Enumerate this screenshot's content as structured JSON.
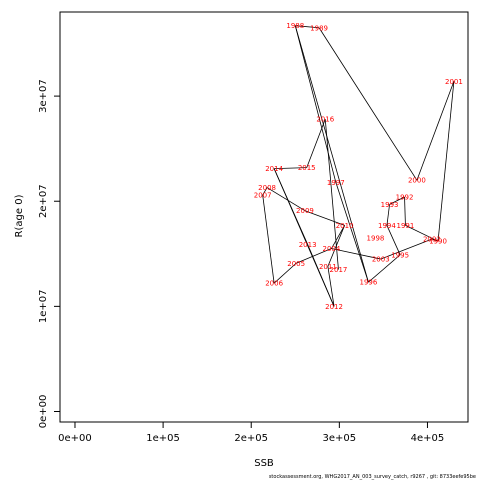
{
  "chart_data": {
    "type": "line",
    "xlabel": "SSB",
    "ylabel": "R(age 0)",
    "xlim": [
      -17000,
      446000
    ],
    "ylim": [
      -1000000,
      38000000
    ],
    "x_ticks": [
      0,
      100000,
      200000,
      300000,
      400000
    ],
    "x_tick_labels": [
      "0e+00",
      "1e+05",
      "2e+05",
      "3e+05",
      "4e+05"
    ],
    "y_ticks": [
      0,
      10000000,
      20000000,
      30000000
    ],
    "y_tick_labels": [
      "0e+00",
      "1e+07",
      "2e+07",
      "3e+07"
    ],
    "line_color": "#000000",
    "label_color": "#ff0000",
    "points": [
      {
        "year": "1988",
        "x": 250000,
        "y": 36700000
      },
      {
        "year": "1989",
        "x": 277000,
        "y": 36500000
      },
      {
        "year": "1990",
        "x": 412000,
        "y": 16200000
      },
      {
        "year": "1991",
        "x": 375000,
        "y": 17700000
      },
      {
        "year": "1992",
        "x": 374000,
        "y": 20400000
      },
      {
        "year": "1993",
        "x": 357000,
        "y": 19700000
      },
      {
        "year": "1994",
        "x": 354000,
        "y": 17700000
      },
      {
        "year": "1995",
        "x": 369000,
        "y": 14900000
      },
      {
        "year": "1996",
        "x": 333000,
        "y": 12300000
      },
      {
        "year": "1997",
        "x": 296000,
        "y": 21800000
      },
      {
        "year": "1998",
        "x": 341000,
        "y": 16500000
      },
      {
        "year": "2000",
        "x": 388000,
        "y": 22000000
      },
      {
        "year": "2001",
        "x": 430000,
        "y": 31400000
      },
      {
        "year": "2002",
        "x": 405000,
        "y": 16400000
      },
      {
        "year": "2003",
        "x": 347000,
        "y": 14500000
      },
      {
        "year": "2004",
        "x": 291000,
        "y": 15500000
      },
      {
        "year": "2005",
        "x": 251000,
        "y": 14100000
      },
      {
        "year": "2006",
        "x": 226000,
        "y": 12200000
      },
      {
        "year": "2007",
        "x": 213000,
        "y": 20600000
      },
      {
        "year": "2008",
        "x": 218000,
        "y": 21300000
      },
      {
        "year": "2009",
        "x": 261000,
        "y": 19100000
      },
      {
        "year": "2010",
        "x": 306000,
        "y": 17700000
      },
      {
        "year": "2011",
        "x": 287000,
        "y": 13800000
      },
      {
        "year": "2012",
        "x": 294000,
        "y": 10000000
      },
      {
        "year": "2013",
        "x": 264000,
        "y": 15900000
      },
      {
        "year": "2014",
        "x": 226000,
        "y": 23100000
      },
      {
        "year": "2015",
        "x": 263000,
        "y": 23200000
      },
      {
        "year": "2016",
        "x": 284000,
        "y": 27800000
      },
      {
        "year": "2017",
        "x": 299000,
        "y": 13500000
      }
    ],
    "connections": [
      [
        "1988",
        "1989"
      ],
      [
        "1989",
        "2000"
      ],
      [
        "2000",
        "2001"
      ],
      [
        "2001",
        "1990"
      ],
      [
        "1990",
        "1991"
      ],
      [
        "1991",
        "1992"
      ],
      [
        "1992",
        "1993"
      ],
      [
        "1993",
        "1994"
      ],
      [
        "1994",
        "1995"
      ],
      [
        "1995",
        "1996"
      ],
      [
        "1996",
        "1997"
      ],
      [
        "1997",
        "1988"
      ],
      [
        "1996",
        "1988"
      ],
      [
        "1990",
        "2002"
      ],
      [
        "2002",
        "2003"
      ],
      [
        "2003",
        "2004"
      ],
      [
        "2004",
        "2005"
      ],
      [
        "2005",
        "2006"
      ],
      [
        "2006",
        "2007"
      ],
      [
        "2007",
        "2008"
      ],
      [
        "2008",
        "2009"
      ],
      [
        "2009",
        "2010"
      ],
      [
        "2010",
        "2011"
      ],
      [
        "2011",
        "2012"
      ],
      [
        "2012",
        "2013"
      ],
      [
        "2013",
        "2014"
      ],
      [
        "2014",
        "2015"
      ],
      [
        "2015",
        "2016"
      ],
      [
        "2016",
        "2017"
      ],
      [
        "2004",
        "2010"
      ],
      [
        "2014",
        "2012"
      ]
    ]
  },
  "footer_text": "stockassessment.org, WHG2017_AN_003_survey_catch, r9267 , git: 8733eefe95be"
}
